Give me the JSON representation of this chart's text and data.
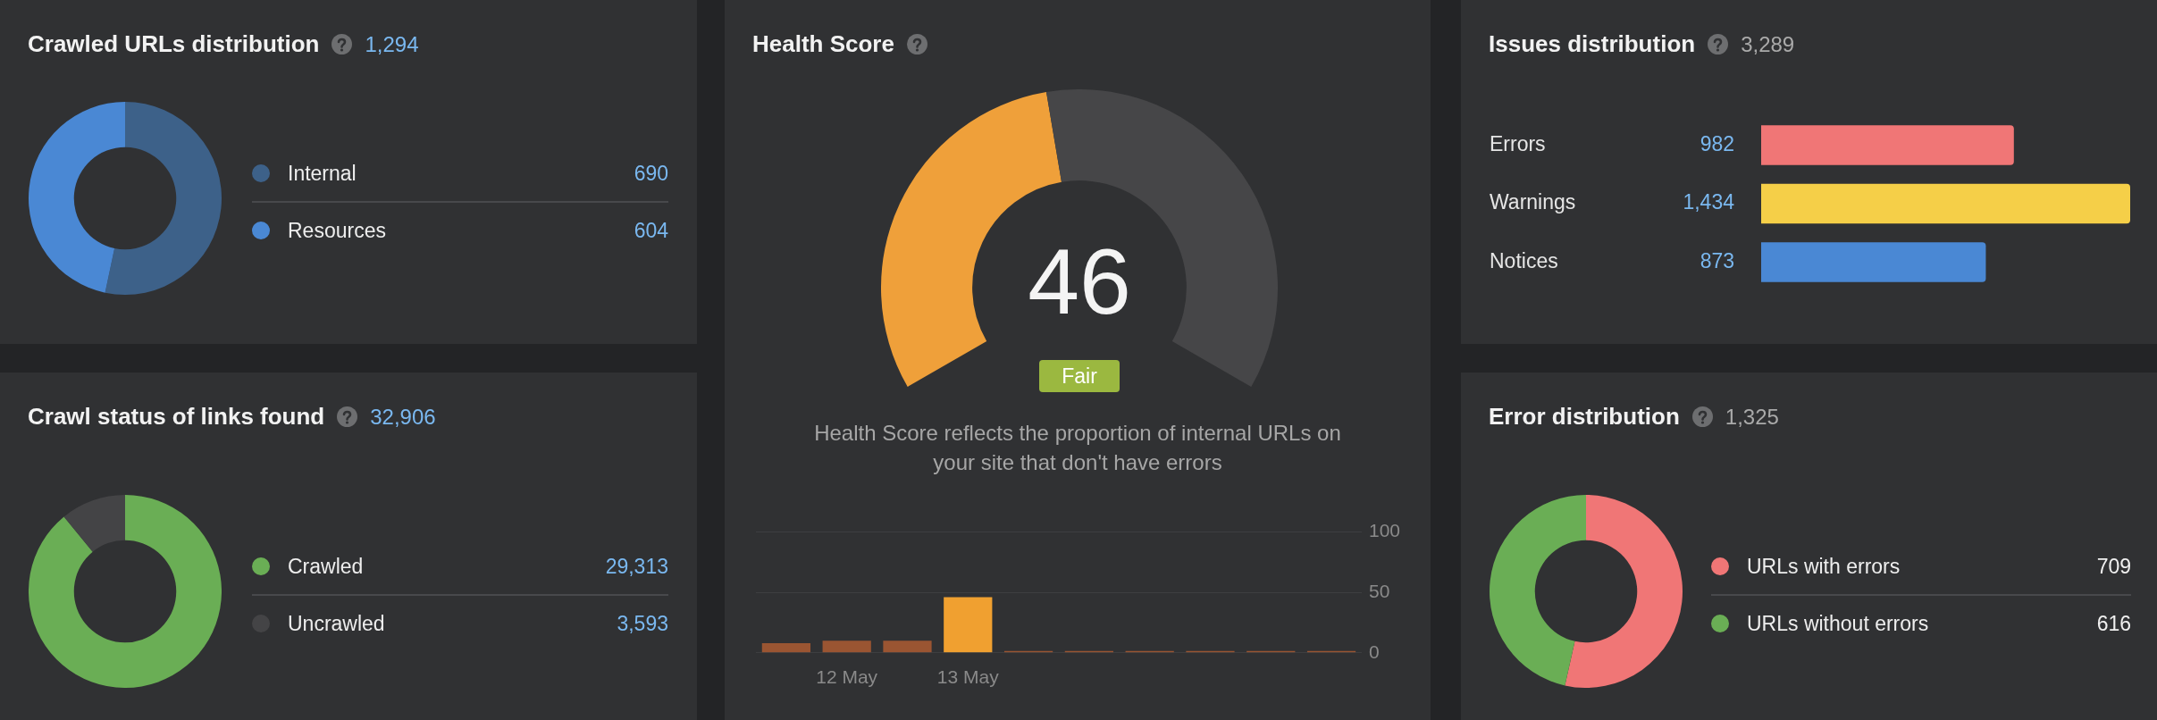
{
  "chart_data": [
    {
      "type": "donut",
      "title": "Crawled URLs distribution",
      "subtitle": "1,294",
      "categories": [
        "Internal",
        "Resources"
      ],
      "values": [
        690,
        604
      ],
      "colors": [
        "#3d6189",
        "#4a88d4"
      ],
      "legend": "right",
      "value_labels": [
        "690",
        "604"
      ]
    },
    {
      "type": "donut",
      "title": "Health Score",
      "categories": [
        null,
        null
      ],
      "values": [
        46,
        54
      ],
      "colors": [
        "#efa03a",
        "#464648"
      ],
      "value_labels": [
        "46",
        null
      ],
      "annotations": [
        "Fair",
        "Health Score reflects the proportion of internal URLs on your site that don't have errors"
      ]
    },
    {
      "type": "bar",
      "orientation": "horizontal",
      "title": "Issues distribution",
      "subtitle": "3,289",
      "categories": [
        "Errors",
        "Warnings",
        "Notices"
      ],
      "values": [
        982,
        1434,
        873
      ],
      "colors": [
        "#f07676",
        "#f5cf48",
        "#4a88d4"
      ],
      "xlim": [
        0,
        1434
      ],
      "value_labels": [
        "982",
        "1,434",
        "873"
      ]
    },
    {
      "type": "donut",
      "title": "Crawl status of links found",
      "subtitle": "32,906",
      "categories": [
        "Crawled",
        "Uncrawled"
      ],
      "values": [
        29313,
        3593
      ],
      "colors": [
        "#6aae55",
        "#444446"
      ],
      "legend": "right",
      "value_labels": [
        "29,313",
        "3,593"
      ]
    },
    {
      "type": "bar",
      "categories": [
        null,
        "12 May",
        null,
        "13 May",
        null,
        null,
        null,
        null,
        null,
        null
      ],
      "values": [
        8,
        10,
        10,
        46,
        1.5,
        1.5,
        1.5,
        1.5,
        1.5,
        1.5
      ],
      "colors": [
        "#9a5532",
        "#9a5532",
        "#9a5532",
        "#f0a030",
        "#9a5532",
        "#9a5532",
        "#9a5532",
        "#9a5532",
        "#9a5532",
        "#9a5532"
      ],
      "ylim": [
        0,
        100
      ],
      "yticks": [
        0,
        50,
        100
      ],
      "grid": "y"
    },
    {
      "type": "donut",
      "title": "Error distribution",
      "subtitle": "1,325",
      "categories": [
        "URLs with errors",
        "URLs without errors"
      ],
      "values": [
        709,
        616
      ],
      "colors": [
        "#f07676",
        "#6aae55"
      ],
      "legend": "right",
      "value_labels": [
        "709",
        "616"
      ]
    }
  ]
}
